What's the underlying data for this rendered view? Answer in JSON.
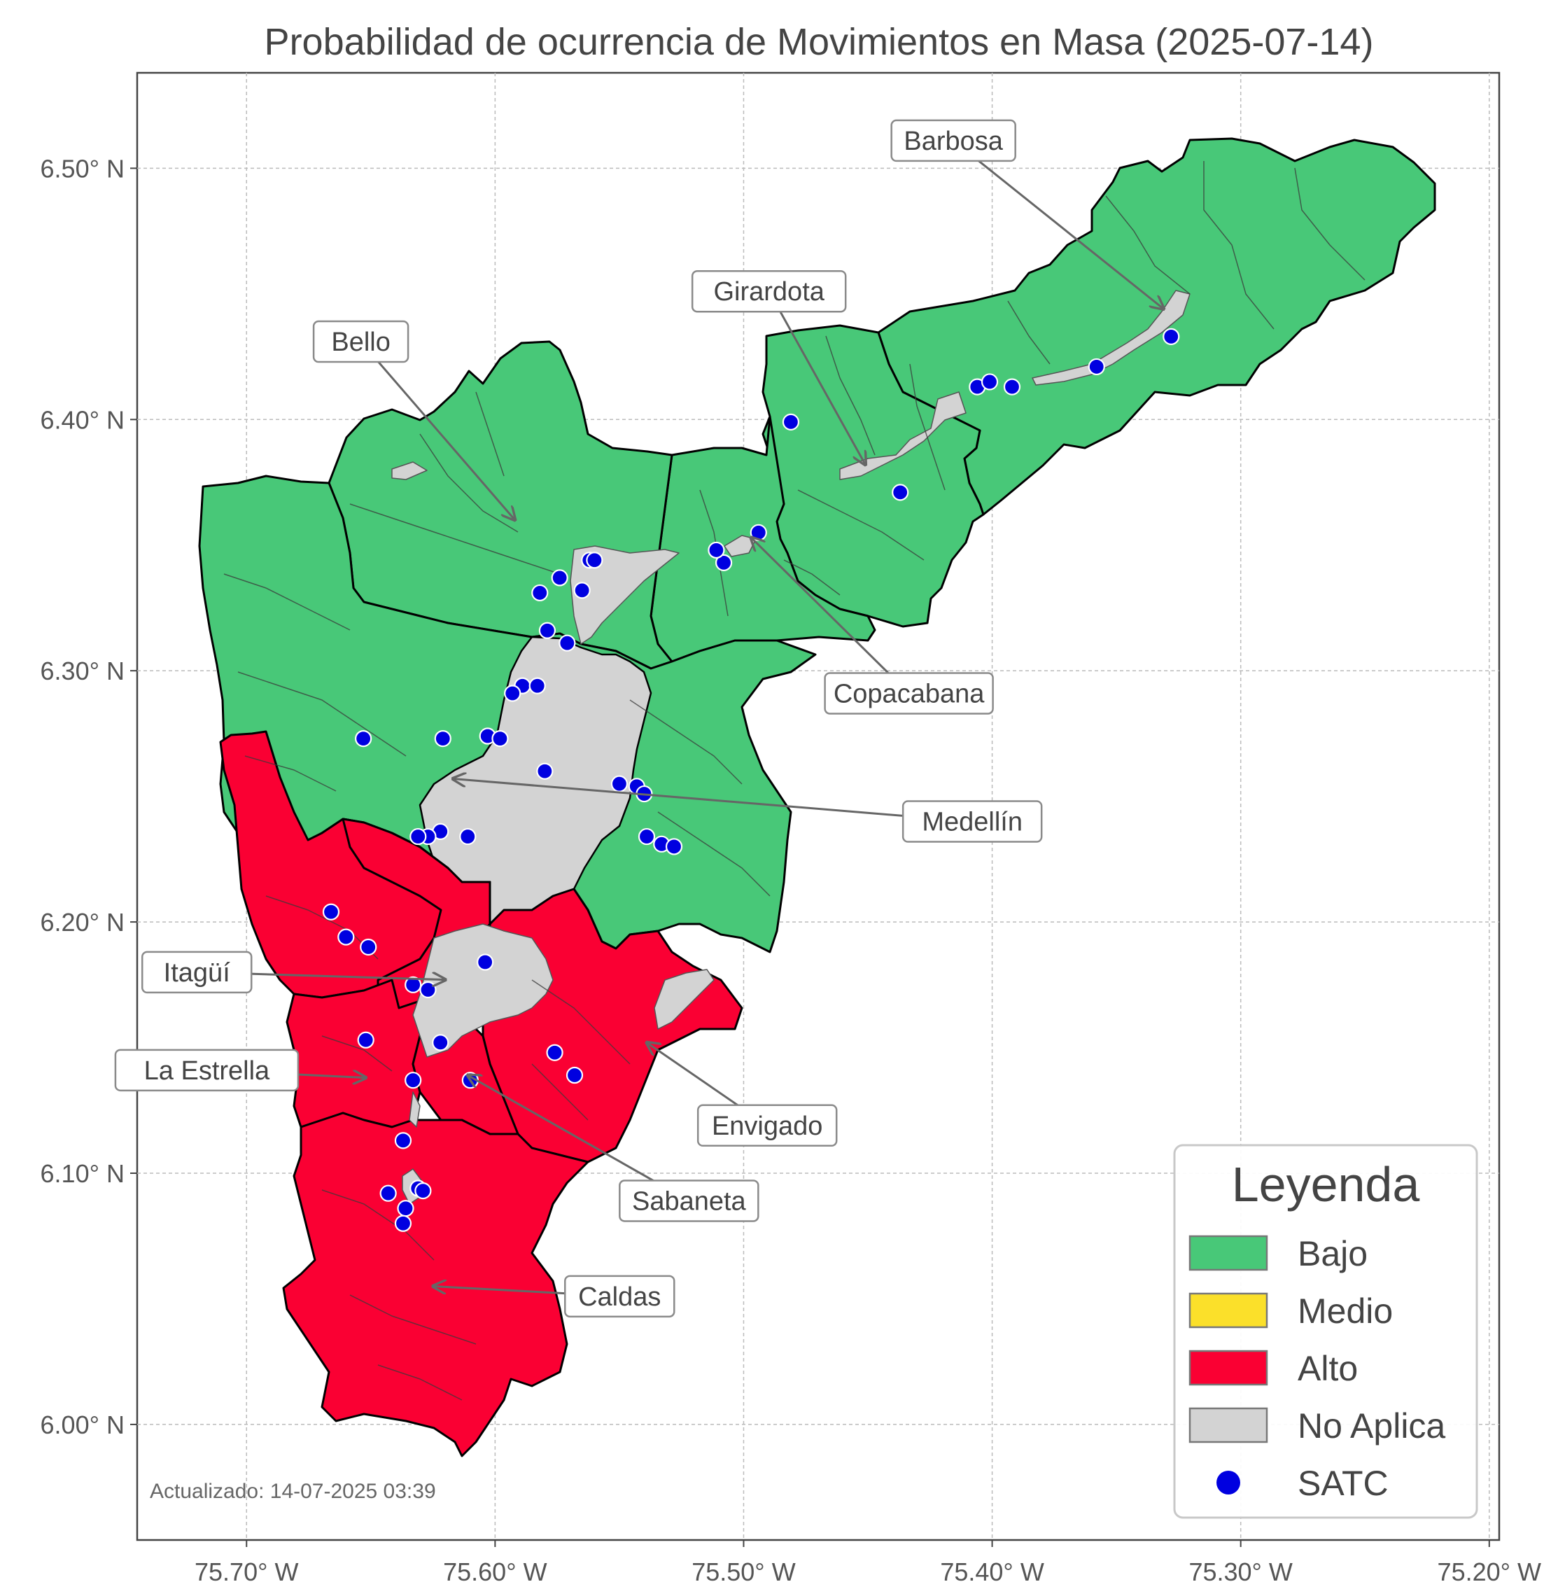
{
  "title": "Probabilidad de ocurrencia de Movimientos en Masa (2025-07-14)",
  "updated": "Actualizado: 14-07-2025 03:39",
  "axes": {
    "x_ticks": [
      "75.70° W",
      "75.60° W",
      "75.50° W",
      "75.40° W",
      "75.30° W",
      "75.20° W"
    ],
    "y_ticks": [
      "6.50° N",
      "6.40° N",
      "6.30° N",
      "6.20° N",
      "6.10° N",
      "6.00° N"
    ],
    "lon_range": [
      -75.744,
      -75.196
    ],
    "lat_range": [
      5.954,
      6.538
    ],
    "grid": true
  },
  "colors": {
    "bajo": "#48c878",
    "medio": "#fbe02a",
    "alto": "#fa0033",
    "no_aplica": "#d3d3d3",
    "satc": "#0000e0"
  },
  "municipalities": [
    {
      "name": "Barbosa",
      "risk": "Bajo"
    },
    {
      "name": "Girardota",
      "risk": "Bajo"
    },
    {
      "name": "Bello",
      "risk": "Bajo"
    },
    {
      "name": "Copacabana",
      "risk": "Bajo"
    },
    {
      "name": "Medellín",
      "risk": "Bajo"
    },
    {
      "name": "Itagüí",
      "risk": "Alto"
    },
    {
      "name": "La Estrella",
      "risk": "Alto"
    },
    {
      "name": "Envigado",
      "risk": "Alto"
    },
    {
      "name": "Sabaneta",
      "risk": "Alto"
    },
    {
      "name": "Caldas",
      "risk": "Alto"
    }
  ],
  "annotations": [
    {
      "label": "Barbosa",
      "label_lon": -75.4156,
      "label_lat": 6.511,
      "target_lon": -75.331,
      "target_lat": 6.444
    },
    {
      "label": "Girardota",
      "label_lon": -75.4898,
      "label_lat": 6.451,
      "target_lon": -75.451,
      "target_lat": 6.382
    },
    {
      "label": "Bello",
      "label_lon": -75.654,
      "label_lat": 6.431,
      "target_lon": -75.592,
      "target_lat": 6.36
    },
    {
      "label": "Copacabana",
      "label_lon": -75.4335,
      "label_lat": 6.291,
      "target_lon": -75.497,
      "target_lat": 6.353
    },
    {
      "label": "Medellín",
      "label_lon": -75.408,
      "label_lat": 6.24,
      "target_lon": -75.617,
      "target_lat": 6.257
    },
    {
      "label": "Itagüí",
      "label_lon": -75.72,
      "label_lat": 6.18,
      "target_lon": -75.62,
      "target_lat": 6.177
    },
    {
      "label": "La Estrella",
      "label_lon": -75.716,
      "label_lat": 6.141,
      "target_lon": -75.652,
      "target_lat": 6.138
    },
    {
      "label": "Envigado",
      "label_lon": -75.4905,
      "label_lat": 6.119,
      "target_lon": -75.539,
      "target_lat": 6.152
    },
    {
      "label": "Sabaneta",
      "label_lon": -75.522,
      "label_lat": 6.089,
      "target_lon": -75.611,
      "target_lat": 6.139
    },
    {
      "label": "Caldas",
      "label_lon": -75.5499,
      "label_lat": 6.051,
      "target_lon": -75.625,
      "target_lat": 6.055
    }
  ],
  "legend": {
    "title": "Leyenda",
    "items": [
      {
        "label": "Bajo",
        "kind": "patch",
        "color": "#48c878"
      },
      {
        "label": "Medio",
        "kind": "patch",
        "color": "#fbe02a"
      },
      {
        "label": "Alto",
        "kind": "patch",
        "color": "#fa0033"
      },
      {
        "label": "No Aplica",
        "kind": "patch",
        "color": "#d3d3d3"
      },
      {
        "label": "SATC",
        "kind": "marker",
        "color": "#0000e0"
      }
    ]
  },
  "satc_stations": [
    [
      -75.328,
      6.433
    ],
    [
      -75.358,
      6.421
    ],
    [
      -75.392,
      6.413
    ],
    [
      -75.406,
      6.413
    ],
    [
      -75.401,
      6.415
    ],
    [
      -75.481,
      6.399
    ],
    [
      -75.437,
      6.371
    ],
    [
      -75.494,
      6.355
    ],
    [
      -75.508,
      6.343
    ],
    [
      -75.511,
      6.348
    ],
    [
      -75.562,
      6.344
    ],
    [
      -75.56,
      6.344
    ],
    [
      -75.574,
      6.337
    ],
    [
      -75.582,
      6.331
    ],
    [
      -75.565,
      6.332
    ],
    [
      -75.579,
      6.316
    ],
    [
      -75.571,
      6.311
    ],
    [
      -75.589,
      6.294
    ],
    [
      -75.583,
      6.294
    ],
    [
      -75.593,
      6.291
    ],
    [
      -75.653,
      6.273
    ],
    [
      -75.621,
      6.273
    ],
    [
      -75.603,
      6.274
    ],
    [
      -75.598,
      6.273
    ],
    [
      -75.58,
      6.26
    ],
    [
      -75.55,
      6.255
    ],
    [
      -75.543,
      6.254
    ],
    [
      -75.54,
      6.251
    ],
    [
      -75.539,
      6.234
    ],
    [
      -75.533,
      6.231
    ],
    [
      -75.528,
      6.23
    ],
    [
      -75.611,
      6.234
    ],
    [
      -75.622,
      6.236
    ],
    [
      -75.627,
      6.234
    ],
    [
      -75.631,
      6.234
    ],
    [
      -75.666,
      6.204
    ],
    [
      -75.66,
      6.194
    ],
    [
      -75.651,
      6.19
    ],
    [
      -75.604,
      6.184
    ],
    [
      -75.633,
      6.175
    ],
    [
      -75.627,
      6.173
    ],
    [
      -75.652,
      6.153
    ],
    [
      -75.622,
      6.152
    ],
    [
      -75.576,
      6.148
    ],
    [
      -75.568,
      6.139
    ],
    [
      -75.61,
      6.137
    ],
    [
      -75.633,
      6.137
    ],
    [
      -75.637,
      6.113
    ],
    [
      -75.643,
      6.092
    ],
    [
      -75.631,
      6.094
    ],
    [
      -75.629,
      6.093
    ],
    [
      -75.636,
      6.086
    ],
    [
      -75.637,
      6.08
    ]
  ]
}
